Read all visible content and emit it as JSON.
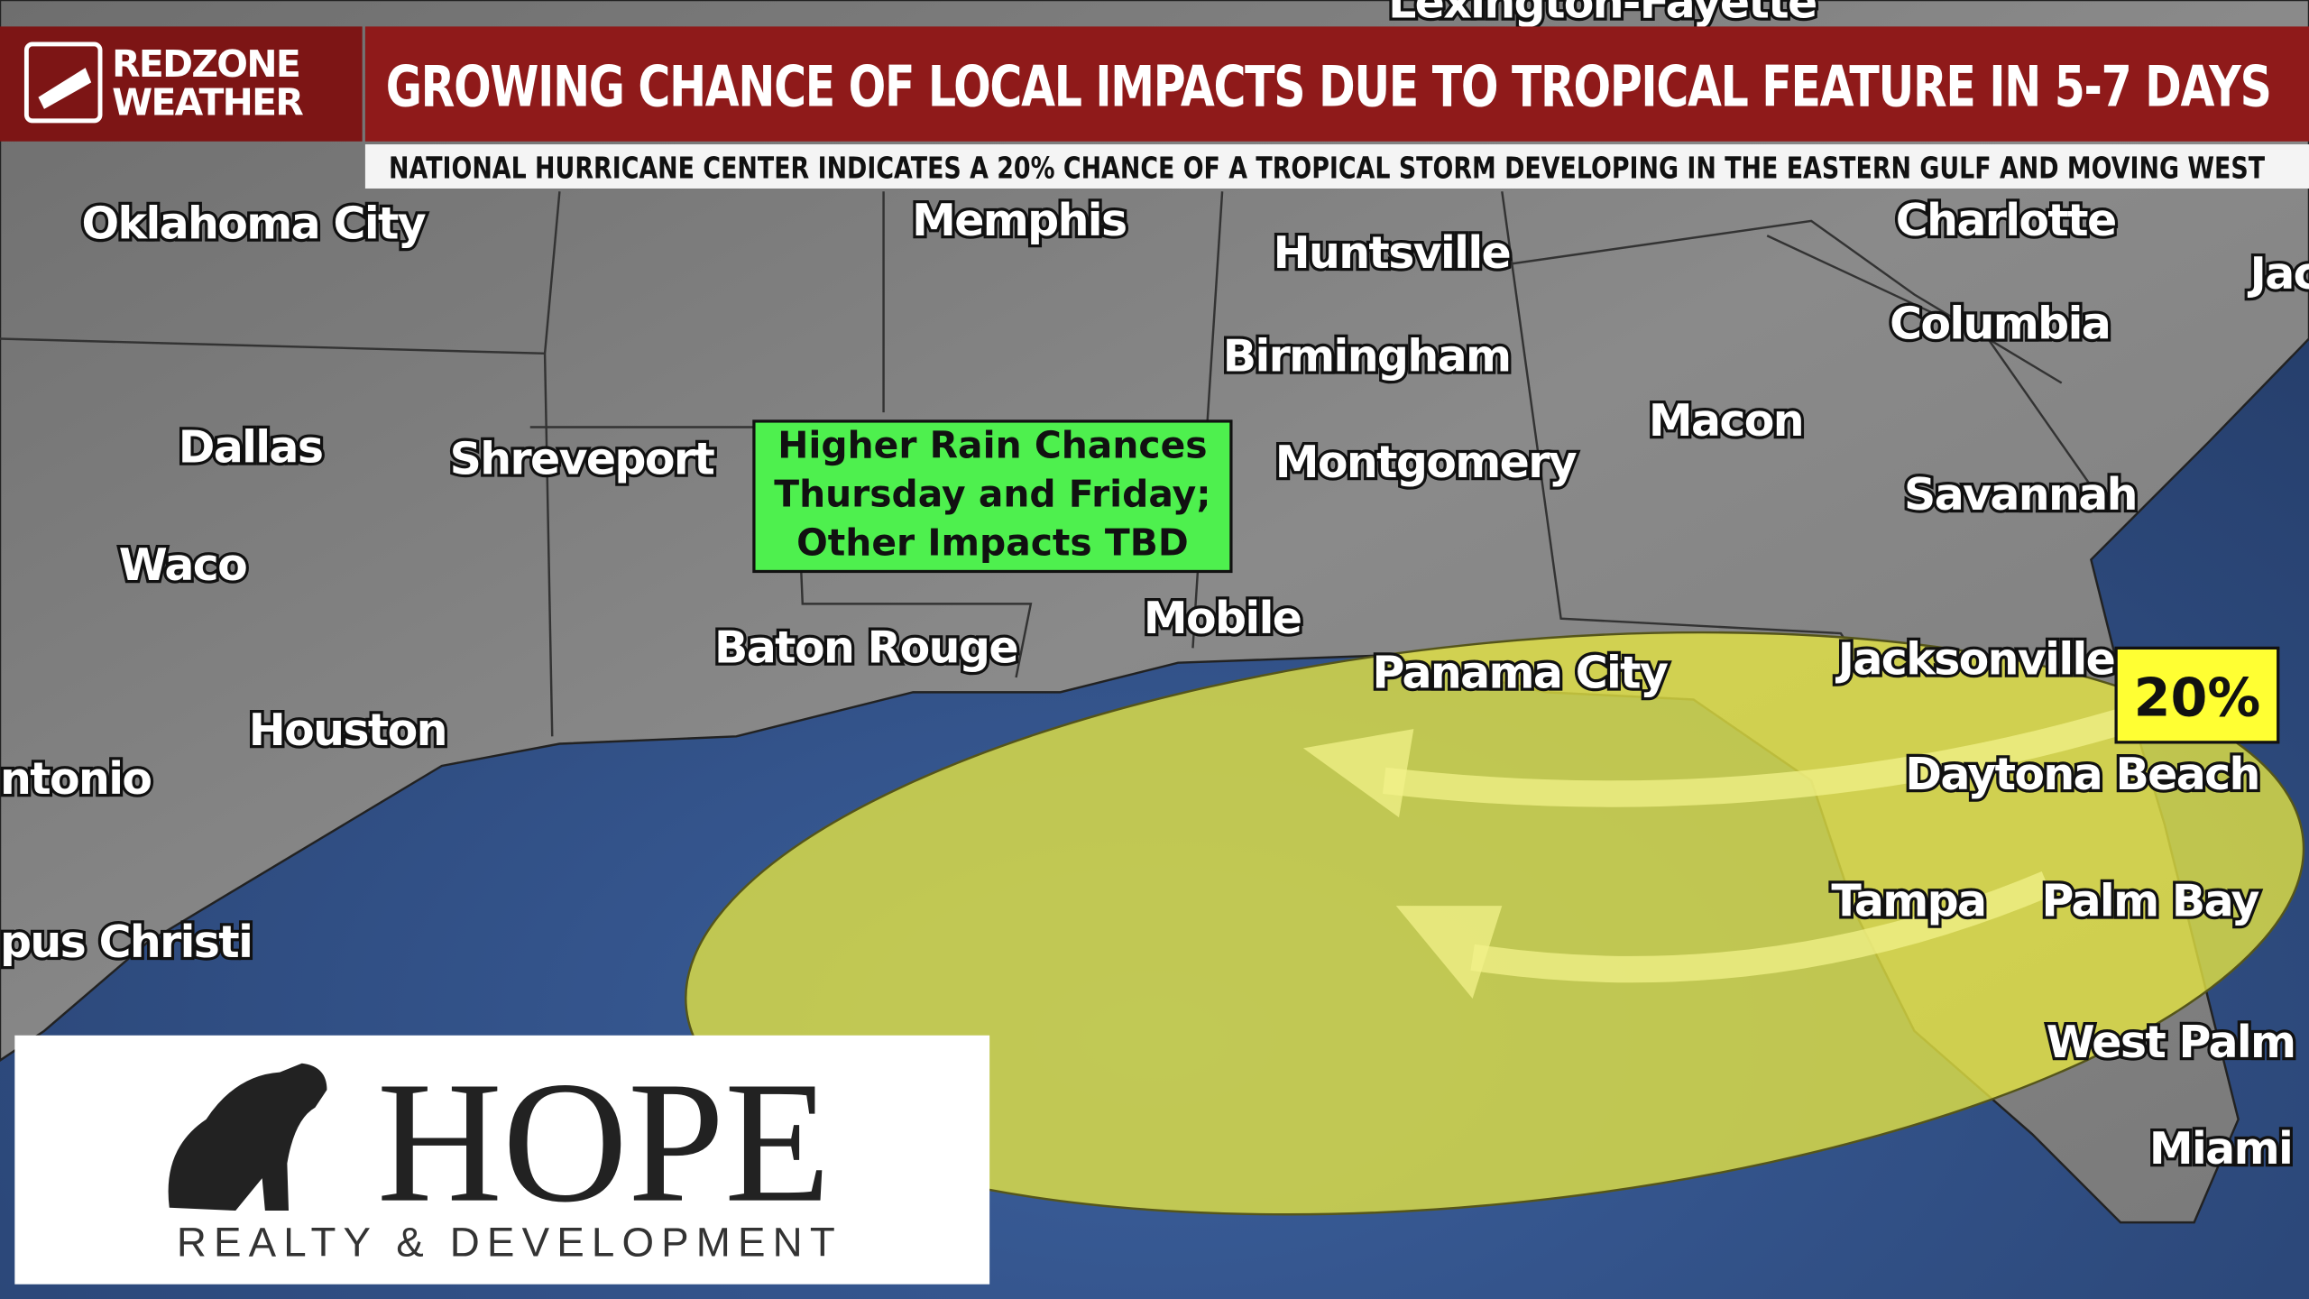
{
  "header": {
    "brand_line1": "REDZONE",
    "brand_line2": "WEATHER",
    "title": "GROWING CHANCE OF LOCAL IMPACTS DUE TO TROPICAL FEATURE IN 5-7 DAYS",
    "subtitle": "NATIONAL HURRICANE CENTER INDICATES A 20% CHANCE OF A TROPICAL STORM DEVELOPING IN THE EASTERN GULF AND MOVING WEST"
  },
  "cities": [
    "Lexington-Fayette",
    "Oklahoma City",
    "Memphis",
    "Huntsville",
    "Charlotte",
    "Jac",
    "Columbia",
    "Birmingham",
    "Dallas",
    "Shreveport",
    "Montgomery",
    "Macon",
    "Savannah",
    "Waco",
    "Baton Rouge",
    "Mobile",
    "Panama City",
    "Jacksonville",
    "Houston",
    "ntonio",
    "Daytona Beach",
    "Tampa",
    "Palm Bay",
    "pus Christi",
    "West Palm",
    "Miami"
  ],
  "callout": {
    "line1": "Higher Rain Chances",
    "line2": "Thursday and Friday;",
    "line3": "Other Impacts TBD"
  },
  "chance_label": "20%",
  "sponsor": {
    "name": "HOPE",
    "tagline": "REALTY & DEVELOPMENT"
  }
}
